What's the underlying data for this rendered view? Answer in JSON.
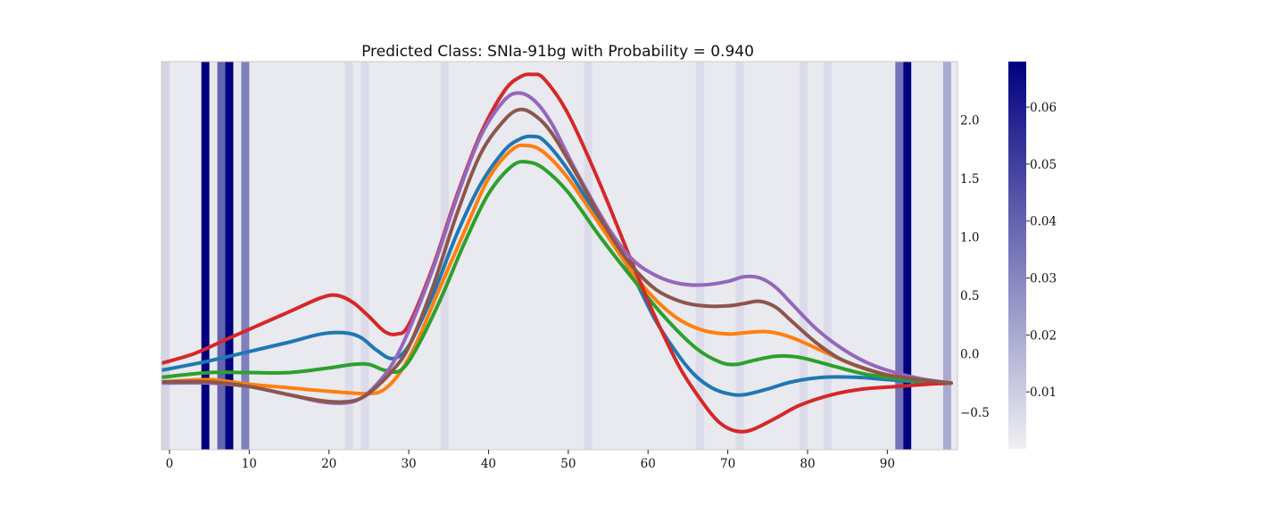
{
  "chart_data": {
    "type": "line",
    "title": "Predicted Class: SNIa-91bg with Probability = 0.940",
    "xlabel": "",
    "ylabel": "",
    "xlim": [
      -1,
      98.8
    ],
    "ylim": [
      -0.82,
      2.5
    ],
    "x_ticks": [
      0,
      10,
      20,
      30,
      40,
      50,
      60,
      70,
      80,
      90
    ],
    "y_ticks": [
      -0.5,
      0.0,
      0.5,
      1.0,
      1.5,
      2.0
    ],
    "y_tick_labels": [
      "−0.5",
      "0.0",
      "0.5",
      "1.0",
      "1.5",
      "2.0"
    ],
    "y_axis_side": "right",
    "grid": false,
    "series": [
      {
        "color": "#1f77b4",
        "x": [
          -1,
          5,
          10,
          15,
          19,
          22,
          24,
          26,
          28,
          30,
          33,
          36,
          39,
          42,
          44,
          45.5,
          47,
          50,
          54,
          58,
          61,
          64,
          66,
          68,
          70,
          72,
          75,
          78,
          82,
          86,
          90,
          94,
          98
        ],
        "y": [
          -0.14,
          -0.06,
          0.02,
          0.1,
          0.17,
          0.18,
          0.14,
          0.03,
          -0.04,
          0.07,
          0.5,
          1.02,
          1.45,
          1.74,
          1.84,
          1.86,
          1.82,
          1.57,
          1.13,
          0.68,
          0.28,
          -0.03,
          -0.19,
          -0.29,
          -0.34,
          -0.35,
          -0.3,
          -0.24,
          -0.2,
          -0.2,
          -0.22,
          -0.24,
          -0.25
        ]
      },
      {
        "color": "#ff7f0e",
        "x": [
          -1,
          5,
          10,
          15,
          20,
          25,
          27,
          29,
          31,
          34,
          37,
          40,
          43,
          45,
          47,
          50,
          54,
          58,
          61,
          64,
          67,
          70,
          72,
          75,
          78,
          82,
          86,
          90,
          94,
          98
        ],
        "y": [
          -0.24,
          -0.22,
          -0.26,
          -0.29,
          -0.32,
          -0.34,
          -0.3,
          -0.15,
          0.1,
          0.58,
          1.05,
          1.5,
          1.75,
          1.78,
          1.72,
          1.5,
          1.1,
          0.7,
          0.46,
          0.29,
          0.2,
          0.17,
          0.18,
          0.19,
          0.14,
          0.02,
          -0.1,
          -0.18,
          -0.22,
          -0.25
        ]
      },
      {
        "color": "#2ca02c",
        "x": [
          -1,
          5,
          10,
          15,
          20,
          23,
          25,
          27,
          29,
          31,
          34,
          37,
          40,
          43,
          45,
          47,
          50,
          54,
          58,
          62,
          66,
          69,
          71,
          73,
          76,
          79,
          83,
          87,
          91,
          95,
          98
        ],
        "y": [
          -0.2,
          -0.16,
          -0.16,
          -0.16,
          -0.12,
          -0.09,
          -0.09,
          -0.14,
          -0.14,
          0.05,
          0.47,
          0.95,
          1.37,
          1.61,
          1.64,
          1.58,
          1.38,
          1.0,
          0.65,
          0.32,
          0.05,
          -0.07,
          -0.09,
          -0.06,
          -0.02,
          -0.03,
          -0.1,
          -0.17,
          -0.21,
          -0.24,
          -0.25
        ]
      },
      {
        "color": "#d62728",
        "x": [
          -1,
          3,
          7,
          11,
          15,
          19,
          21,
          23,
          25,
          27,
          28.5,
          30,
          33,
          36,
          39,
          42,
          44,
          45.5,
          47,
          50,
          54,
          58,
          61,
          64,
          67,
          69,
          71,
          73,
          76,
          79,
          83,
          87,
          91,
          95,
          98
        ],
        "y": [
          -0.08,
          0.0,
          0.12,
          0.24,
          0.36,
          0.48,
          0.5,
          0.44,
          0.32,
          0.19,
          0.17,
          0.25,
          0.74,
          1.35,
          1.88,
          2.25,
          2.37,
          2.39,
          2.35,
          2.05,
          1.45,
          0.78,
          0.3,
          -0.12,
          -0.43,
          -0.59,
          -0.66,
          -0.65,
          -0.55,
          -0.44,
          -0.35,
          -0.3,
          -0.28,
          -0.26,
          -0.25
        ]
      },
      {
        "color": "#9467bd",
        "x": [
          -1,
          5,
          10,
          15,
          19,
          22,
          24,
          26,
          28,
          30,
          33,
          36,
          39,
          42,
          44,
          46,
          48,
          51,
          55,
          58,
          61,
          64,
          67,
          70,
          72,
          74,
          76,
          78,
          81,
          84,
          87,
          90,
          94,
          98
        ],
        "y": [
          -0.25,
          -0.25,
          -0.28,
          -0.35,
          -0.41,
          -0.42,
          -0.38,
          -0.26,
          -0.08,
          0.2,
          0.72,
          1.33,
          1.86,
          2.17,
          2.23,
          2.15,
          1.96,
          1.56,
          1.08,
          0.81,
          0.67,
          0.6,
          0.59,
          0.62,
          0.66,
          0.65,
          0.57,
          0.43,
          0.22,
          0.06,
          -0.06,
          -0.14,
          -0.21,
          -0.25
        ]
      },
      {
        "color": "#8c564b",
        "x": [
          -1,
          5,
          10,
          15,
          19,
          22,
          24,
          26,
          28,
          30,
          33,
          36,
          39,
          42,
          44,
          46,
          48,
          51,
          55,
          58,
          61,
          64,
          67,
          70,
          72,
          74,
          76,
          78,
          81,
          84,
          87,
          90,
          94,
          98
        ],
        "y": [
          -0.24,
          -0.24,
          -0.28,
          -0.35,
          -0.4,
          -0.41,
          -0.38,
          -0.28,
          -0.14,
          0.06,
          0.57,
          1.19,
          1.71,
          2.0,
          2.09,
          2.03,
          1.88,
          1.54,
          1.05,
          0.75,
          0.55,
          0.45,
          0.41,
          0.41,
          0.43,
          0.45,
          0.4,
          0.28,
          0.1,
          -0.04,
          -0.12,
          -0.18,
          -0.22,
          -0.25
        ]
      }
    ],
    "attention": {
      "bin_centers": [
        -0.5,
        4.5,
        6.5,
        7.5,
        9.5,
        22.5,
        24.5,
        34.5,
        52.5,
        66.5,
        71.5,
        79.5,
        82.5,
        91.5,
        92.5,
        97.5
      ],
      "weights": [
        0.008,
        0.068,
        0.04,
        0.068,
        0.032,
        0.006,
        0.006,
        0.006,
        0.006,
        0.006,
        0.006,
        0.006,
        0.006,
        0.035,
        0.068,
        0.02
      ],
      "background_weight": 0.002,
      "bin_width": 1.0
    },
    "colorbar": {
      "range": [
        0.0,
        0.068
      ],
      "ticks": [
        0.01,
        0.02,
        0.03,
        0.04,
        0.05,
        0.06
      ],
      "tick_labels": [
        "0.01",
        "0.02",
        "0.03",
        "0.04",
        "0.05",
        "0.06"
      ],
      "colormap_low": "#f0f0f3",
      "colormap_high": "#000080"
    }
  }
}
